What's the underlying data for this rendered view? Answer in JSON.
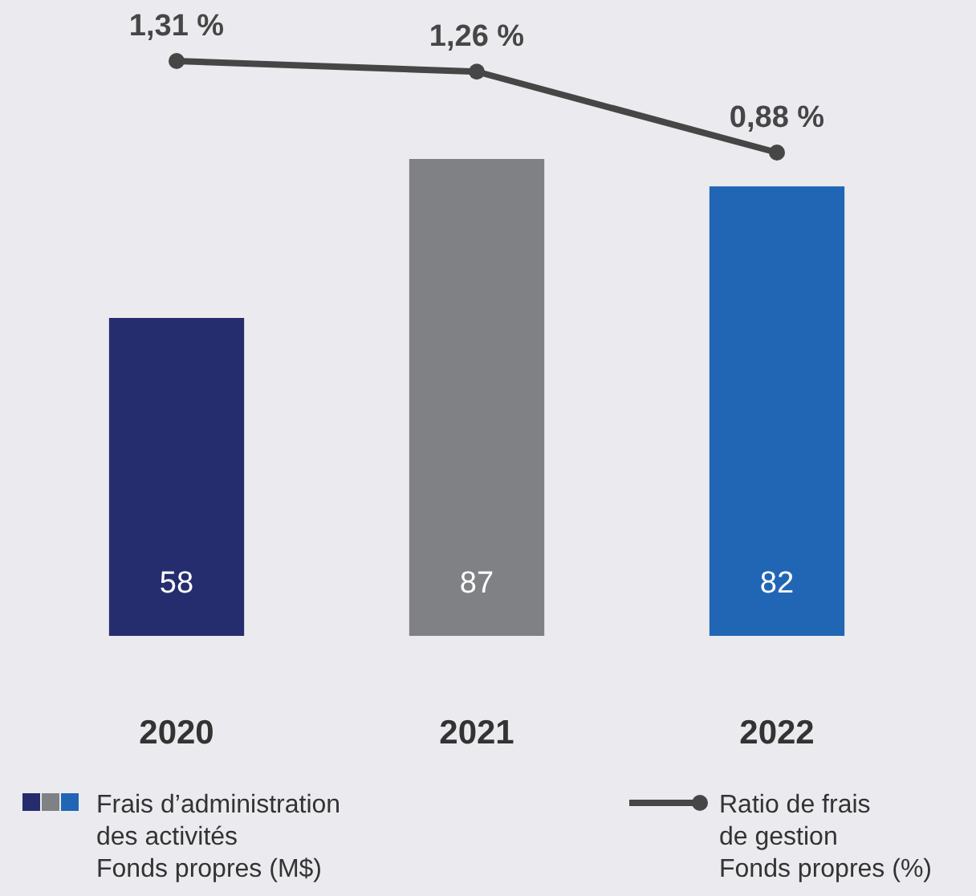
{
  "chart_data": [
    {
      "type": "line",
      "categories": [
        "2020",
        "2021",
        "2022"
      ],
      "tick_labels": false,
      "marker": "circle",
      "legend": "bottom right",
      "series": [
        {
          "name": "Ratio de frais\nde gestion\nFonds propres (%)",
          "color": "#464646",
          "values": [
            1.31,
            1.26,
            0.88
          ],
          "value_labels": [
            "1,31 %",
            "1,26 %",
            "0,88 %"
          ]
        }
      ]
    },
    {
      "type": "bar",
      "categories": [
        "2020",
        "2021",
        "2022"
      ],
      "ylim": [
        0,
        87
      ],
      "data_labels": true,
      "legend": "bottom left",
      "series": [
        {
          "type": "bar",
          "name": "Frais d’administration\ndes activités\nFonds propres (M$)",
          "colors": [
            "#252d6e",
            "#808184",
            "#2166b5"
          ],
          "values": [
            58,
            87,
            82
          ]
        }
      ]
    }
  ]
}
